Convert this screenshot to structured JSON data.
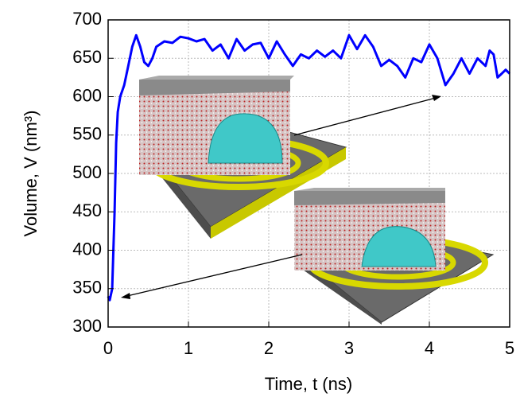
{
  "chart_data": {
    "type": "line",
    "x_label": "Time, t (ns)",
    "y_label": "Volume, V (nm³)",
    "xlim": [
      0,
      5
    ],
    "xticks": [
      0,
      1,
      2,
      3,
      4,
      5
    ],
    "ylim": [
      300,
      700
    ],
    "yticks": [
      300,
      350,
      400,
      450,
      500,
      550,
      600,
      650,
      700
    ],
    "grid": true,
    "series": [
      {
        "color": "#0000ff",
        "x": [
          0,
          0.02,
          0.05,
          0.08,
          0.1,
          0.12,
          0.15,
          0.2,
          0.25,
          0.3,
          0.35,
          0.4,
          0.45,
          0.5,
          0.55,
          0.6,
          0.7,
          0.8,
          0.9,
          1.0,
          1.1,
          1.2,
          1.3,
          1.4,
          1.5,
          1.6,
          1.7,
          1.8,
          1.9,
          2.0,
          2.1,
          2.2,
          2.3,
          2.4,
          2.5,
          2.6,
          2.7,
          2.8,
          2.9,
          3.0,
          3.1,
          3.2,
          3.3,
          3.4,
          3.5,
          3.6,
          3.7,
          3.8,
          3.9,
          4.0,
          4.1,
          4.2,
          4.3,
          4.4,
          4.5,
          4.6,
          4.7,
          4.75,
          4.8,
          4.85,
          4.9,
          4.95,
          5.0
        ],
        "values": [
          340,
          335,
          350,
          450,
          540,
          580,
          600,
          615,
          640,
          665,
          680,
          665,
          645,
          640,
          650,
          665,
          672,
          670,
          678,
          676,
          672,
          675,
          660,
          668,
          650,
          675,
          660,
          668,
          670,
          650,
          672,
          655,
          640,
          655,
          650,
          660,
          652,
          660,
          650,
          680,
          662,
          680,
          665,
          640,
          648,
          640,
          625,
          650,
          645,
          668,
          650,
          615,
          630,
          650,
          630,
          650,
          640,
          660,
          655,
          625,
          630,
          635,
          630
        ]
      }
    ]
  }
}
